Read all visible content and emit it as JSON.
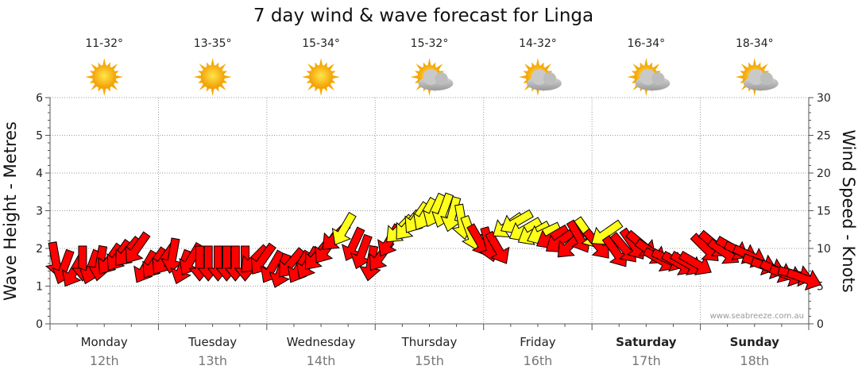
{
  "chart_data": {
    "type": "scatter",
    "title": "7 day wind & wave forecast for Linga",
    "ylabel_left": "Wave Height - Metres",
    "ylabel_right": "Wind Speed - Knots",
    "ylim_left": [
      0,
      6
    ],
    "ylim_right": [
      0,
      30
    ],
    "yticks_left": [
      "0",
      "1",
      "2",
      "3",
      "4",
      "5",
      "6"
    ],
    "yticks_right": [
      "0",
      "5",
      "10",
      "15",
      "20",
      "25",
      "30"
    ],
    "grid": true,
    "watermark": "www.seabreeze.com.au",
    "days": [
      {
        "name": "Monday",
        "date": "12th",
        "temp": "11-32°",
        "weather": "sunny-icon",
        "bold": false
      },
      {
        "name": "Tuesday",
        "date": "13th",
        "temp": "13-35°",
        "weather": "sunny-icon",
        "bold": false
      },
      {
        "name": "Wednesday",
        "date": "14th",
        "temp": "15-34°",
        "weather": "sunny-icon",
        "bold": false
      },
      {
        "name": "Thursday",
        "date": "15th",
        "temp": "15-32°",
        "weather": "partly-cloudy-icon",
        "bold": false
      },
      {
        "name": "Friday",
        "date": "16th",
        "temp": "14-32°",
        "weather": "partly-cloudy-icon",
        "bold": false
      },
      {
        "name": "Saturday",
        "date": "17th",
        "temp": "16-34°",
        "weather": "partly-cloudy-icon",
        "bold": true
      },
      {
        "name": "Sunday",
        "date": "18th",
        "temp": "18-34°",
        "weather": "partly-cloudy-icon",
        "bold": true
      }
    ],
    "wind_colors": {
      "light": "#ffff1a",
      "strong": "#ff0000"
    },
    "wind_series": {
      "name": "",
      "unit": "knots",
      "x_days": [
        0.05,
        0.13,
        0.22,
        0.3,
        0.38,
        0.46,
        0.55,
        0.63,
        0.71,
        0.8,
        0.88,
        0.96,
        1.05,
        1.13,
        1.22,
        1.3,
        1.38,
        1.46,
        1.55,
        1.63,
        1.71,
        1.8,
        1.88,
        1.96,
        2.05,
        2.13,
        2.22,
        2.3,
        2.38,
        2.46,
        2.55,
        2.63,
        2.71,
        2.8,
        2.88,
        2.96,
        3.05,
        3.13,
        3.22,
        3.3,
        3.38,
        3.46,
        3.55,
        3.63,
        3.71,
        3.8,
        3.88,
        3.96,
        4.05,
        4.13,
        4.22,
        4.3,
        4.38,
        4.46,
        4.55,
        4.63,
        4.71,
        4.8,
        4.88,
        4.96,
        5.05,
        5.13,
        5.22,
        5.3,
        5.38,
        5.46,
        5.55,
        5.63,
        5.71,
        5.8,
        5.88,
        5.96,
        6.05,
        6.13,
        6.22,
        6.3,
        6.38,
        6.46,
        6.55,
        6.63,
        6.71,
        6.8,
        6.88,
        6.96
      ],
      "speed": [
        8.5,
        7.5,
        7.0,
        8.0,
        7.5,
        8.0,
        8.5,
        9.0,
        9.5,
        10.0,
        7.5,
        8.0,
        8.5,
        9.0,
        7.5,
        8.5,
        8.0,
        8.0,
        8.0,
        8.0,
        8.0,
        8.0,
        8.5,
        8.5,
        7.5,
        7.0,
        8.0,
        7.5,
        8.0,
        9.0,
        10.0,
        11.5,
        12.5,
        10.5,
        9.5,
        8.0,
        9.0,
        11.0,
        12.5,
        13.0,
        14.0,
        14.5,
        15.0,
        15.0,
        14.5,
        13.5,
        12.0,
        11.0,
        10.5,
        10.0,
        13.0,
        13.5,
        12.5,
        12.0,
        12.0,
        11.5,
        11.0,
        10.5,
        11.5,
        12.0,
        10.5,
        12.0,
        9.5,
        10.0,
        10.5,
        10.5,
        9.5,
        8.5,
        8.5,
        8.0,
        8.0,
        8.0,
        10.0,
        10.5,
        9.5,
        10.0,
        9.5,
        9.0,
        8.0,
        7.5,
        7.0,
        6.5,
        6.5,
        6.0
      ],
      "direction_deg": [
        170,
        200,
        210,
        180,
        200,
        190,
        215,
        215,
        220,
        215,
        210,
        215,
        215,
        190,
        200,
        210,
        180,
        180,
        180,
        180,
        180,
        180,
        225,
        215,
        210,
        200,
        220,
        210,
        210,
        220,
        215,
        225,
        210,
        205,
        200,
        190,
        215,
        210,
        225,
        220,
        215,
        210,
        205,
        200,
        195,
        170,
        160,
        150,
        165,
        150,
        235,
        240,
        240,
        240,
        245,
        240,
        235,
        225,
        150,
        145,
        140,
        235,
        145,
        140,
        145,
        130,
        125,
        120,
        115,
        120,
        120,
        120,
        135,
        130,
        125,
        120,
        115,
        115,
        110,
        110,
        115,
        110,
        105,
        110
      ]
    }
  }
}
